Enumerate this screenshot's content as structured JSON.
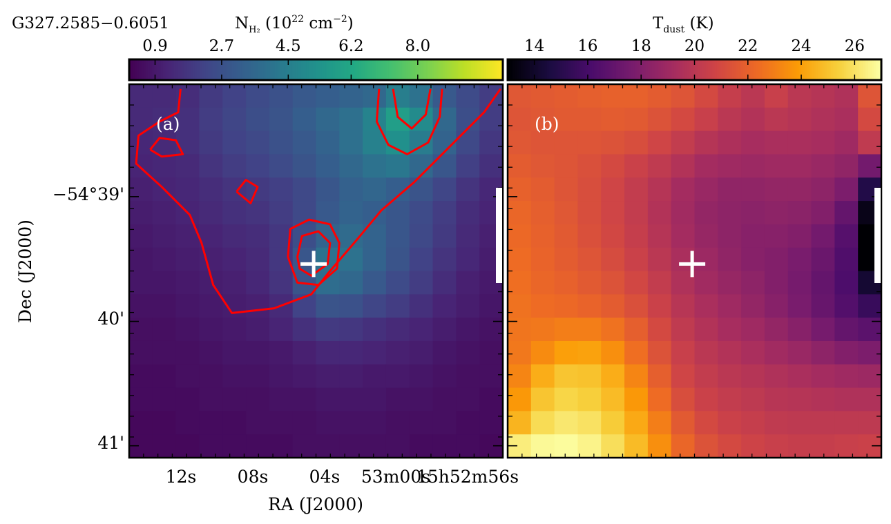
{
  "source_name": "G327.2585−0.6051",
  "panel_a": {
    "label": "(a)",
    "colorbar": {
      "label_main": "N",
      "label_sub": "H₂",
      "label_rest": " (10",
      "label_exp": "22",
      "label_unit": " cm",
      "label_unit_exp": "−2",
      "label_close": ")",
      "ticks": [
        "0.9",
        "2.7",
        "4.5",
        "6.2",
        "8.0"
      ],
      "tick_values": [
        0.9,
        2.7,
        4.5,
        6.2,
        8.0
      ],
      "range": [
        0.2,
        10.3
      ],
      "colormap": "viridis"
    }
  },
  "panel_b": {
    "label": "(b)",
    "colorbar": {
      "label_main": "T",
      "label_sub": "dust",
      "label_rest": " (K)",
      "ticks": [
        "14",
        "16",
        "18",
        "20",
        "22",
        "24",
        "26"
      ],
      "tick_values": [
        14,
        16,
        18,
        20,
        22,
        24,
        26
      ],
      "range": [
        13.0,
        27.0
      ],
      "colormap": "inferno"
    }
  },
  "axes": {
    "xlabel": "RA (J2000)",
    "ylabel": "Dec (J2000)",
    "x_ticks": [
      "12s",
      "08s",
      "04s",
      "53m00s",
      "15h52m56s"
    ],
    "y_ticks": [
      "−54°39'",
      "40'",
      "41'"
    ]
  },
  "marker": "+",
  "chart_data": [
    {
      "type": "heatmap",
      "title": "",
      "colorbar_label": "N_H2 (10^22 cm^-2)",
      "xlabel": "RA (J2000)",
      "ylabel": "Dec (J2000)",
      "x_ticks": [
        "12s",
        "08s",
        "04s",
        "53m00s",
        "15h52m56s"
      ],
      "y_ticks": [
        "-54°39'",
        "40'",
        "41'"
      ],
      "colorbar_ticks": [
        0.9,
        2.7,
        4.5,
        6.2,
        8.0
      ],
      "zlim": [
        0.2,
        10.3
      ],
      "contour_color": "#ff0000",
      "marker_color": "#ffffff",
      "grid_note": "16 columns x 16 rows, values in 10^22 cm^-2",
      "values": [
        [
          1.4,
          1.4,
          1.5,
          1.9,
          2.2,
          2.5,
          2.7,
          3.0,
          3.2,
          3.4,
          3.6,
          4.5,
          4.0,
          3.0,
          2.5,
          2.0
        ],
        [
          1.4,
          1.5,
          1.6,
          2.0,
          2.3,
          2.6,
          2.8,
          3.2,
          3.6,
          3.9,
          4.7,
          5.8,
          5.0,
          3.6,
          2.6,
          2.0
        ],
        [
          1.3,
          1.4,
          1.6,
          1.9,
          2.2,
          2.4,
          2.7,
          3.0,
          3.4,
          3.9,
          4.6,
          5.2,
          4.4,
          3.4,
          2.4,
          1.8
        ],
        [
          1.2,
          1.3,
          1.4,
          1.7,
          2.0,
          2.2,
          2.5,
          2.8,
          3.2,
          3.6,
          4.0,
          4.2,
          3.6,
          2.9,
          2.1,
          1.6
        ],
        [
          1.1,
          1.2,
          1.3,
          1.5,
          1.7,
          1.9,
          2.1,
          2.4,
          2.9,
          3.3,
          3.5,
          3.2,
          2.8,
          2.3,
          1.7,
          1.3
        ],
        [
          1.0,
          1.1,
          1.2,
          1.4,
          1.6,
          1.7,
          2.0,
          2.4,
          3.0,
          3.4,
          3.2,
          2.9,
          2.5,
          2.0,
          1.5,
          1.2
        ],
        [
          0.9,
          1.0,
          1.1,
          1.2,
          1.4,
          1.5,
          1.8,
          2.6,
          3.4,
          3.7,
          3.4,
          2.9,
          2.4,
          1.9,
          1.4,
          1.1
        ],
        [
          0.8,
          0.9,
          1.0,
          1.1,
          1.2,
          1.4,
          1.8,
          2.9,
          4.0,
          4.0,
          3.4,
          2.8,
          2.2,
          1.7,
          1.3,
          1.0
        ],
        [
          0.8,
          0.8,
          0.9,
          1.0,
          1.1,
          1.3,
          1.7,
          2.8,
          3.8,
          3.6,
          3.0,
          2.5,
          2.0,
          1.5,
          1.1,
          0.9
        ],
        [
          0.7,
          0.7,
          0.8,
          0.9,
          1.0,
          1.1,
          1.4,
          2.2,
          2.8,
          2.7,
          2.3,
          2.0,
          1.6,
          1.2,
          1.0,
          0.8
        ],
        [
          0.6,
          0.6,
          0.7,
          0.8,
          0.9,
          1.0,
          1.2,
          1.6,
          1.9,
          1.8,
          1.6,
          1.4,
          1.2,
          1.0,
          0.8,
          0.7
        ],
        [
          0.6,
          0.6,
          0.6,
          0.7,
          0.8,
          0.8,
          0.9,
          1.1,
          1.3,
          1.3,
          1.2,
          1.1,
          1.0,
          0.8,
          0.7,
          0.6
        ],
        [
          0.5,
          0.5,
          0.6,
          0.6,
          0.7,
          0.7,
          0.8,
          0.9,
          1.0,
          1.0,
          0.9,
          0.9,
          0.8,
          0.7,
          0.6,
          0.6
        ],
        [
          0.5,
          0.5,
          0.5,
          0.6,
          0.6,
          0.6,
          0.7,
          0.7,
          0.8,
          0.8,
          0.8,
          0.7,
          0.7,
          0.6,
          0.6,
          0.5
        ],
        [
          0.4,
          0.4,
          0.5,
          0.5,
          0.5,
          0.6,
          0.6,
          0.6,
          0.7,
          0.7,
          0.7,
          0.6,
          0.6,
          0.6,
          0.5,
          0.5
        ],
        [
          0.4,
          0.4,
          0.4,
          0.5,
          0.5,
          0.5,
          0.5,
          0.6,
          0.6,
          0.6,
          0.6,
          0.6,
          0.5,
          0.5,
          0.5,
          0.4
        ]
      ],
      "contours": [
        [
          [
            2.2,
            0.2
          ],
          [
            2.1,
            1.2
          ],
          [
            1.3,
            1.6
          ],
          [
            0.4,
            2.2
          ],
          [
            0.3,
            3.4
          ],
          [
            1.4,
            4.4
          ],
          [
            2.6,
            5.6
          ],
          [
            3.1,
            6.8
          ],
          [
            3.6,
            8.6
          ],
          [
            4.4,
            9.8
          ],
          [
            6.2,
            9.6
          ],
          [
            7.8,
            9.0
          ],
          [
            8.6,
            8.0
          ],
          [
            9.8,
            6.6
          ],
          [
            10.8,
            5.4
          ],
          [
            12.2,
            4.2
          ],
          [
            13.6,
            2.8
          ],
          [
            15.2,
            1.2
          ],
          [
            15.9,
            0.2
          ]
        ],
        [
          [
            6.8,
            7.4
          ],
          [
            6.9,
            6.2
          ],
          [
            7.7,
            5.8
          ],
          [
            8.6,
            6.0
          ],
          [
            9.0,
            6.8
          ],
          [
            8.9,
            7.9
          ],
          [
            8.1,
            8.6
          ],
          [
            7.2,
            8.5
          ],
          [
            6.8,
            7.4
          ]
        ],
        [
          [
            7.2,
            7.4
          ],
          [
            7.4,
            6.5
          ],
          [
            8.1,
            6.3
          ],
          [
            8.6,
            6.8
          ],
          [
            8.5,
            7.7
          ],
          [
            7.8,
            8.2
          ],
          [
            7.3,
            7.9
          ],
          [
            7.2,
            7.4
          ]
        ],
        [
          [
            10.7,
            0.2
          ],
          [
            10.6,
            1.6
          ],
          [
            11.1,
            2.6
          ],
          [
            11.9,
            3.0
          ],
          [
            12.8,
            2.5
          ],
          [
            13.3,
            1.4
          ],
          [
            13.4,
            0.2
          ]
        ],
        [
          [
            11.3,
            0.2
          ],
          [
            11.5,
            1.4
          ],
          [
            12.1,
            1.9
          ],
          [
            12.7,
            1.3
          ],
          [
            12.9,
            0.2
          ]
        ],
        [
          [
            4.6,
            4.6
          ],
          [
            5.0,
            4.1
          ],
          [
            5.5,
            4.4
          ],
          [
            5.2,
            5.1
          ],
          [
            4.6,
            4.6
          ]
        ],
        [
          [
            0.9,
            2.8
          ],
          [
            1.3,
            2.3
          ],
          [
            2.0,
            2.4
          ],
          [
            2.3,
            3.0
          ],
          [
            1.4,
            3.1
          ],
          [
            0.9,
            2.8
          ]
        ]
      ],
      "marker": {
        "col": 7.9,
        "row": 7.7
      }
    },
    {
      "type": "heatmap",
      "title": "",
      "colorbar_label": "T_dust (K)",
      "xlabel": "",
      "ylabel": "",
      "colorbar_ticks": [
        14,
        16,
        18,
        20,
        22,
        24,
        26
      ],
      "zlim": [
        13.0,
        27.0
      ],
      "marker_color": "#ffffff",
      "grid_note": "16 columns x 16 rows, values in K",
      "values": [
        [
          21.6,
          21.7,
          21.8,
          21.9,
          22.0,
          22.0,
          21.8,
          21.5,
          21.0,
          20.4,
          20.0,
          20.5,
          20.0,
          19.8,
          19.6,
          21.5
        ],
        [
          21.5,
          21.6,
          21.7,
          21.7,
          21.8,
          21.7,
          21.4,
          21.0,
          20.5,
          20.0,
          19.7,
          20.0,
          19.8,
          19.6,
          19.4,
          21.0
        ],
        [
          21.6,
          21.5,
          21.5,
          21.5,
          21.4,
          21.2,
          20.8,
          20.3,
          19.8,
          19.5,
          19.3,
          19.4,
          19.4,
          19.3,
          19.0,
          20.2
        ],
        [
          21.8,
          21.6,
          21.5,
          21.3,
          21.0,
          20.6,
          20.2,
          19.7,
          19.2,
          19.0,
          18.9,
          19.0,
          19.0,
          18.8,
          18.5,
          17.5
        ],
        [
          22.0,
          21.8,
          21.5,
          21.2,
          20.8,
          20.3,
          19.8,
          19.2,
          18.8,
          18.5,
          18.5,
          18.6,
          18.6,
          18.4,
          17.8,
          14.8
        ],
        [
          22.2,
          21.9,
          21.6,
          21.2,
          20.8,
          20.3,
          19.7,
          19.1,
          18.6,
          18.4,
          18.3,
          18.4,
          18.3,
          18.0,
          17.0,
          13.5
        ],
        [
          22.3,
          22.0,
          21.7,
          21.3,
          20.9,
          20.4,
          19.8,
          19.2,
          18.7,
          18.4,
          18.2,
          18.2,
          18.0,
          17.5,
          16.5,
          13.0
        ],
        [
          22.4,
          22.1,
          21.8,
          21.5,
          21.1,
          20.6,
          20.0,
          19.4,
          18.9,
          18.5,
          18.2,
          18.0,
          17.7,
          17.2,
          16.3,
          13.0
        ],
        [
          22.5,
          22.2,
          22.0,
          21.7,
          21.4,
          20.9,
          20.3,
          19.6,
          19.1,
          18.7,
          18.4,
          18.0,
          17.6,
          17.0,
          16.2,
          14.2
        ],
        [
          22.6,
          22.4,
          22.3,
          22.1,
          21.8,
          21.3,
          20.6,
          19.9,
          19.4,
          19.0,
          18.6,
          18.2,
          17.7,
          17.1,
          16.4,
          15.5
        ],
        [
          22.7,
          22.8,
          23.0,
          23.0,
          22.6,
          21.9,
          21.0,
          20.2,
          19.7,
          19.3,
          19.0,
          18.6,
          18.2,
          17.6,
          17.0,
          16.7
        ],
        [
          22.8,
          23.4,
          24.0,
          24.1,
          23.5,
          22.5,
          21.4,
          20.5,
          20.0,
          19.7,
          19.4,
          19.1,
          18.8,
          18.4,
          18.0,
          17.8
        ],
        [
          23.2,
          24.4,
          25.1,
          25.0,
          24.4,
          23.2,
          21.9,
          20.8,
          20.3,
          20.0,
          19.8,
          19.6,
          19.4,
          19.2,
          19.0,
          18.9
        ],
        [
          23.8,
          25.1,
          25.6,
          25.4,
          24.8,
          23.8,
          22.4,
          21.2,
          20.6,
          20.3,
          20.1,
          19.9,
          19.8,
          19.7,
          19.6,
          19.6
        ],
        [
          24.6,
          25.8,
          26.2,
          26.0,
          25.3,
          24.3,
          23.0,
          21.7,
          21.0,
          20.6,
          20.4,
          20.2,
          20.1,
          20.1,
          20.1,
          20.1
        ],
        [
          26.4,
          26.8,
          26.9,
          26.6,
          25.9,
          24.8,
          23.5,
          22.2,
          21.4,
          21.0,
          20.7,
          20.5,
          20.4,
          20.4,
          20.5,
          20.6
        ]
      ],
      "marker": {
        "col": 7.9,
        "row": 7.7
      }
    }
  ]
}
